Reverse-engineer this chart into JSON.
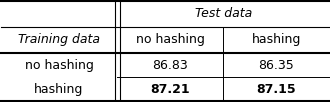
{
  "title_row": "Test data",
  "header_col": "Training data",
  "col_headers": [
    "no hashing",
    "hashing"
  ],
  "row_labels": [
    "no hashing",
    "hashing"
  ],
  "values": [
    [
      "86.83",
      "86.35"
    ],
    [
      "87.21",
      "87.15"
    ]
  ],
  "bold_rows": [
    1
  ],
  "bg_color": "#ffffff",
  "line_color": "#000000",
  "font_size": 9,
  "italic_header": true,
  "c0": 0.0,
  "c1": 0.355,
  "c2": 0.677,
  "c3": 1.0,
  "r0": 1.0,
  "r1": 0.74,
  "r2": 0.48,
  "r3": 0.24,
  "r4": 0.0
}
